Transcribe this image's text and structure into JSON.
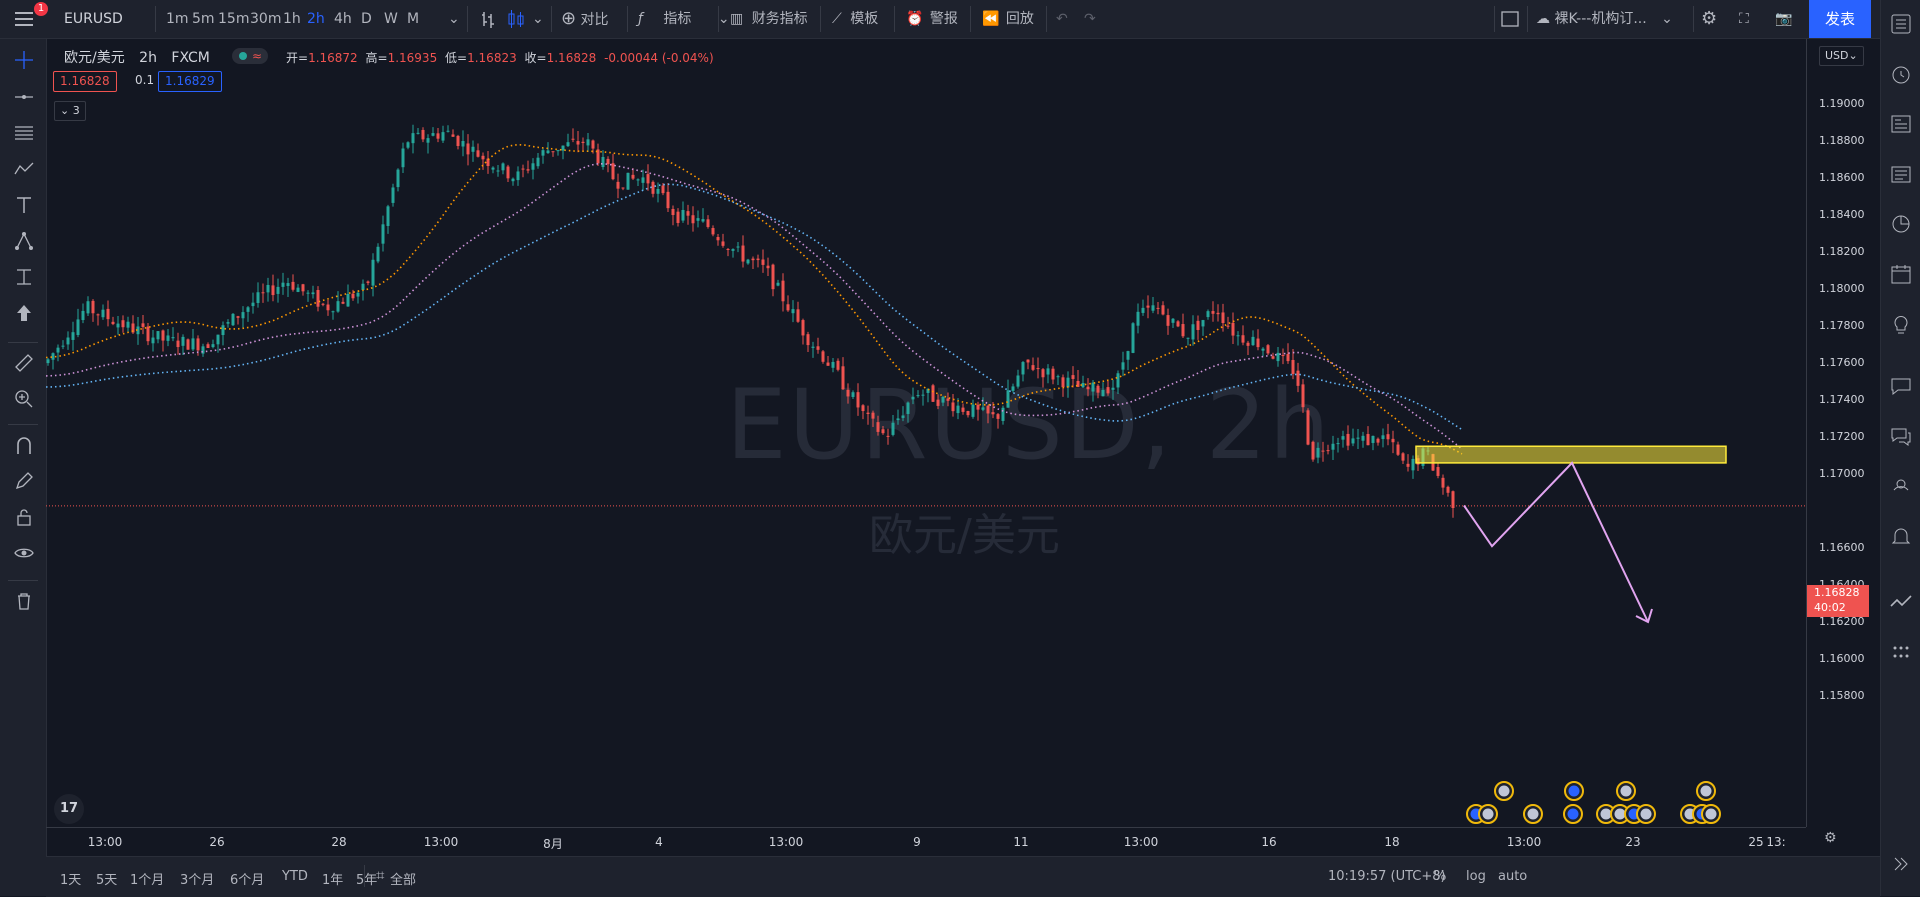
{
  "toolbar": {
    "symbol": "EURUSD",
    "timeframes": [
      "1m",
      "5m",
      "15m",
      "30m",
      "1h",
      "2h",
      "4h",
      "D",
      "W",
      "M"
    ],
    "active_timeframe": "2h",
    "compare_label": "对比",
    "indicators_label": "指标",
    "financials_label": "财务指标",
    "templates_label": "模板",
    "alert_label": "警报",
    "replay_label": "回放",
    "layout_name": "裸K---机构订...",
    "publish_label": "发表",
    "notification_count": "1"
  },
  "legend": {
    "title": "欧元/美元",
    "interval": "2h",
    "exchange": "FXCM",
    "open_label": "开=",
    "open": "1.16872",
    "high_label": "高=",
    "high": "1.16935",
    "low_label": "低=",
    "low": "1.16823",
    "close_label": "收=",
    "close": "1.16828",
    "change": "-0.00044 (-0.04%)",
    "bid": "1.16828",
    "spread": "0.1",
    "ask": "1.16829",
    "indicators_count": "3"
  },
  "watermark": {
    "symbol": "EURUSD, 2h",
    "name": "欧元/美元"
  },
  "price_axis": {
    "currency": "USD",
    "labels": [
      "1.19000",
      "1.18800",
      "1.18600",
      "1.18400",
      "1.18200",
      "1.18000",
      "1.17800",
      "1.17600",
      "1.17400",
      "1.17200",
      "1.17000",
      "1.16600",
      "1.16400",
      "1.16200",
      "1.16000",
      "1.15800"
    ],
    "current_price": "1.16828",
    "countdown": "40:02"
  },
  "time_axis": {
    "labels": [
      "13:00",
      "26",
      "28",
      "13:00",
      "8月",
      "4",
      "13:00",
      "9",
      "11",
      "13:00",
      "16",
      "18",
      "13:00",
      "23",
      "25",
      "13:"
    ]
  },
  "bottom_bar": {
    "ranges": [
      "1天",
      "5天",
      "1个月",
      "3个月",
      "6个月",
      "YTD",
      "1年",
      "5年",
      "全部"
    ],
    "clock": "10:19:57 (UTC+8)",
    "pct_label": "%",
    "log_label": "log",
    "auto_label": "auto"
  },
  "colors": {
    "up": "#26a69a",
    "down": "#ef5350",
    "ma_fast": "#ff9800",
    "ma_mid": "#ce93d8",
    "ma_slow": "#64b5f6",
    "zone": "#ffeb3b",
    "projection": "#e1a4f0",
    "accent": "#2962ff"
  },
  "chart_data": {
    "type": "candlestick",
    "symbol": "EURUSD",
    "ylim": [
      1.158,
      1.192
    ],
    "last_price": 1.16828,
    "supply_zone": {
      "top": 1.1715,
      "bottom": 1.1706
    },
    "projection_path": [
      1.1683,
      1.1661,
      1.1706,
      1.162
    ]
  }
}
